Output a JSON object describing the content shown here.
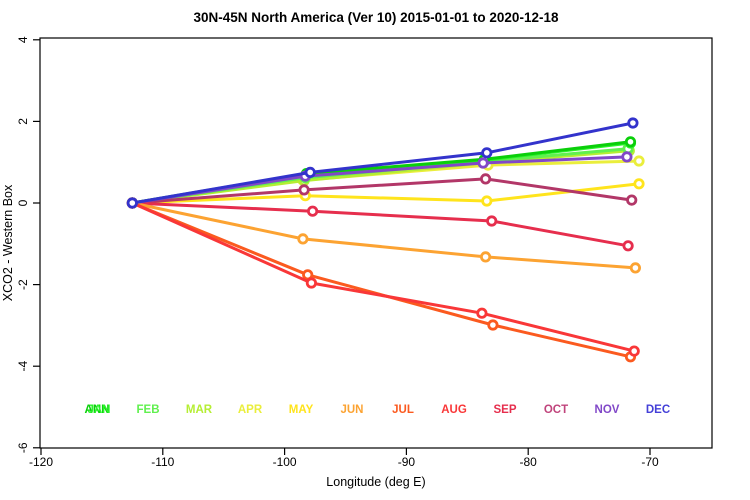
{
  "chart_data": {
    "type": "line",
    "title": "30N-45N North America (Ver 10)   2015-01-01 to 2020-12-18",
    "xlabel": "Longitude (deg E)",
    "ylabel": "XCO2 - Western Box",
    "xlim": [
      -120,
      -64.9
    ],
    "ylim": [
      -6,
      4.05
    ],
    "xticks": [
      -120,
      -110,
      -100,
      -90,
      -80,
      -70
    ],
    "yticks": [
      4,
      2,
      0,
      -2,
      -4,
      -6
    ],
    "grid": false,
    "legend_position": "bottom-inside",
    "marker": "open-circle",
    "series": [
      {
        "name": "MAY",
        "color": "#FFE41C",
        "x": [
          -112.5,
          -98.3,
          -83.4,
          -70.9
        ],
        "y": [
          0,
          0.18,
          0.05,
          0.47
        ]
      },
      {
        "name": "APR",
        "color": "#EAEE3C",
        "x": [
          -112.5,
          -98.5,
          -83.3,
          -70.9
        ],
        "y": [
          0,
          0.56,
          0.93,
          1.03
        ]
      },
      {
        "name": "MAR",
        "color": "#B5EE33",
        "x": [
          -112.5,
          -98.4,
          -83.7,
          -71.7
        ],
        "y": [
          0,
          0.55,
          0.98,
          1.28
        ]
      },
      {
        "name": "FEB",
        "color": "#61F04F",
        "x": [
          -112.5,
          -98.3,
          -83.6,
          -71.8
        ],
        "y": [
          0,
          0.62,
          1.02,
          1.33
        ]
      },
      {
        "name": "JAN",
        "color": "#2BF32B",
        "x": [
          -112.5,
          -98.2,
          -83.6,
          -71.6
        ],
        "y": [
          0,
          0.7,
          1.05,
          1.47
        ]
      },
      {
        "name": "ANN",
        "color": "#0ACF0A",
        "x": [
          -112.5,
          -98.2,
          -83.6,
          -71.6
        ],
        "y": [
          0,
          0.72,
          1.07,
          1.5
        ]
      },
      {
        "name": "OCT",
        "color": "#B23768",
        "x": [
          -112.5,
          -98.4,
          -83.5,
          -71.5
        ],
        "y": [
          0,
          0.32,
          0.59,
          0.07
        ]
      },
      {
        "name": "SEP",
        "color": "#E62E4D",
        "x": [
          -112.5,
          -97.7,
          -83.0,
          -71.8
        ],
        "y": [
          0,
          -0.2,
          -0.44,
          -1.05
        ]
      },
      {
        "name": "JUN",
        "color": "#FCA332",
        "x": [
          -112.5,
          -98.5,
          -83.5,
          -71.2
        ],
        "y": [
          0,
          -0.88,
          -1.32,
          -1.59
        ]
      },
      {
        "name": "JUL",
        "color": "#FB5A1F",
        "x": [
          -112.5,
          -98.1,
          -82.9,
          -71.6
        ],
        "y": [
          0,
          -1.76,
          -2.99,
          -3.77
        ]
      },
      {
        "name": "AUG",
        "color": "#F93738",
        "x": [
          -112.5,
          -97.8,
          -83.8,
          -71.3
        ],
        "y": [
          0,
          -1.96,
          -2.7,
          -3.63
        ]
      },
      {
        "name": "NOV",
        "color": "#8148C8",
        "x": [
          -112.5,
          -98.3,
          -83.7,
          -71.9
        ],
        "y": [
          0,
          0.66,
          0.98,
          1.13
        ]
      },
      {
        "name": "DEC",
        "color": "#3333CC",
        "x": [
          -112.5,
          -97.9,
          -83.4,
          -71.4
        ],
        "y": [
          0,
          0.75,
          1.23,
          1.96
        ]
      }
    ],
    "legend": [
      {
        "label": "ANN",
        "color": "#0ACF0A",
        "slot": 0,
        "dx": 0
      },
      {
        "label": "JAN",
        "color": "#2BF32B",
        "slot": 0,
        "dx": 2
      },
      {
        "label": "FEB",
        "color": "#61F04F",
        "slot": 1,
        "dx": 0
      },
      {
        "label": "MAR",
        "color": "#B5EE33",
        "slot": 2,
        "dx": 0
      },
      {
        "label": "APR",
        "color": "#EAEE3C",
        "slot": 3,
        "dx": 0
      },
      {
        "label": "MAY",
        "color": "#FFE41C",
        "slot": 4,
        "dx": 0
      },
      {
        "label": "JUN",
        "color": "#FCA332",
        "slot": 5,
        "dx": 0
      },
      {
        "label": "JUL",
        "color": "#FB5A1F",
        "slot": 6,
        "dx": 0
      },
      {
        "label": "AUG",
        "color": "#F93738",
        "slot": 7,
        "dx": 0
      },
      {
        "label": "SEP",
        "color": "#E62E4D",
        "slot": 8,
        "dx": 0
      },
      {
        "label": "OCT",
        "color": "#C0447C",
        "slot": 9,
        "dx": 0
      },
      {
        "label": "NOV",
        "color": "#8148C8",
        "slot": 10,
        "dx": 0
      },
      {
        "label": "DEC",
        "color": "#4440D8",
        "slot": 11,
        "dx": 0
      }
    ]
  }
}
